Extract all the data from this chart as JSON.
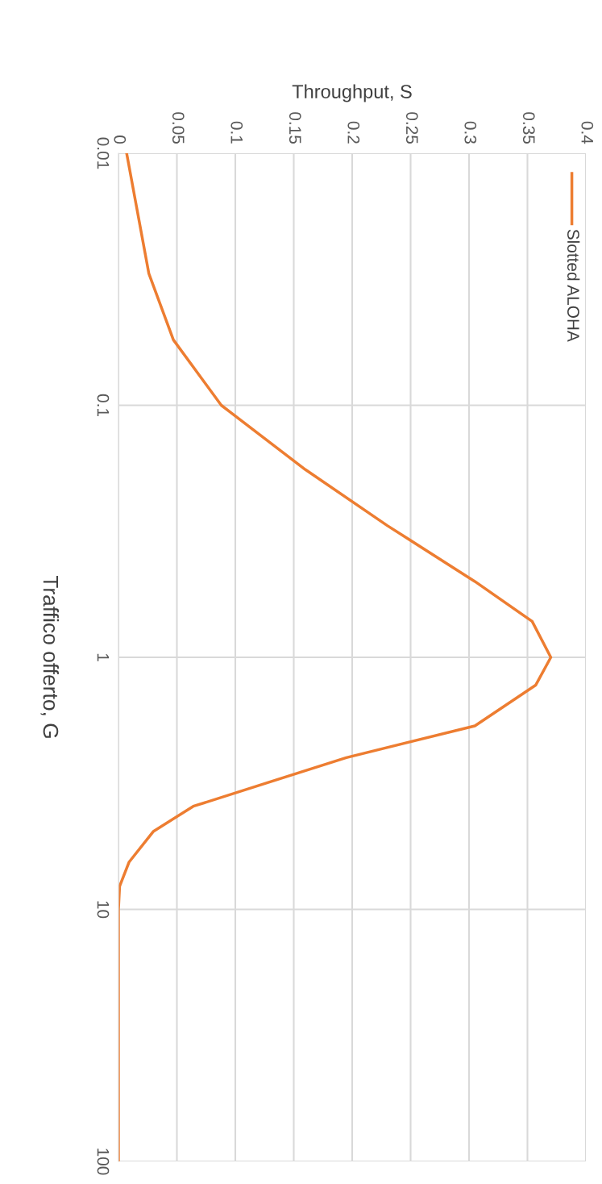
{
  "chart_data": {
    "type": "line",
    "xlabel": "Throughput, S",
    "ylabel": "Traffico offerto, G",
    "log": "y",
    "xlim": [
      0,
      0.4
    ],
    "xticks": [
      0,
      0.05,
      0.1,
      0.15,
      0.2,
      0.25,
      0.3,
      0.35,
      0.4
    ],
    "ylim": [
      100,
      0.01
    ],
    "yticks": [
      0.01,
      0.1,
      1,
      10,
      100
    ],
    "grid": true,
    "legend": "top right",
    "marker": "none",
    "line_style": "solid",
    "series": [
      {
        "name": "Slotted ALOHA",
        "color": "#ed7d31",
        "x": [
          0.007,
          0.026,
          0.047,
          0.088,
          0.16,
          0.23,
          0.305,
          0.354,
          0.37,
          0.357,
          0.305,
          0.195,
          0.126,
          0.064,
          0.03,
          0.009,
          0.001,
          0,
          0
        ],
        "values": [
          0.01,
          0.03,
          0.055,
          0.1,
          0.18,
          0.3,
          0.5,
          0.72,
          1,
          1.29,
          1.87,
          2.5,
          3.16,
          3.9,
          4.9,
          6.5,
          8.1,
          10,
          100
        ]
      }
    ]
  }
}
